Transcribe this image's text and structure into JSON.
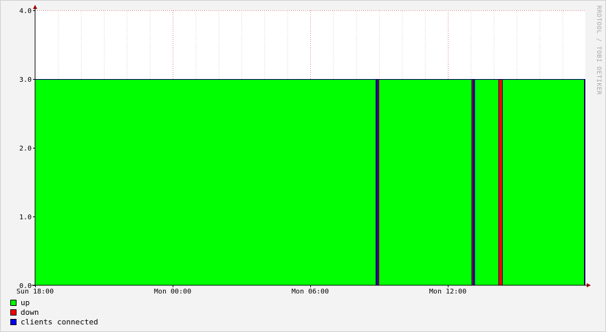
{
  "chart_data": {
    "type": "area",
    "watermark": "RRDTOOL / TOBI OETIKER",
    "ylim": [
      0,
      4
    ],
    "yticks": [
      {
        "value": 0,
        "label": "0.0"
      },
      {
        "value": 1,
        "label": "1.0"
      },
      {
        "value": 2,
        "label": "2.0"
      },
      {
        "value": 3,
        "label": "3.0"
      },
      {
        "value": 4,
        "label": "4.0"
      }
    ],
    "xlim_hours": [
      0,
      24
    ],
    "xticks": [
      {
        "hours": 0,
        "label": "Sun 18:00"
      },
      {
        "hours": 6,
        "label": "Mon 00:00"
      },
      {
        "hours": 12,
        "label": "Mon 06:00"
      },
      {
        "hours": 18,
        "label": "Mon 12:00"
      }
    ],
    "grid": true,
    "legend_position": "bottom-left",
    "series": [
      {
        "name": "up",
        "color": "#00ff00"
      },
      {
        "name": "down",
        "color": "#ff0000"
      },
      {
        "name": "clients connected",
        "color": "#0000ff"
      }
    ],
    "segments": [
      {
        "start": 0.0,
        "end": 14.87,
        "series": "up",
        "value": 3
      },
      {
        "start": 14.87,
        "end": 14.93,
        "series": "clients connected",
        "value": 3
      },
      {
        "start": 14.93,
        "end": 14.99,
        "series": "down",
        "value": 3
      },
      {
        "start": 14.99,
        "end": 19.05,
        "series": "up",
        "value": 3
      },
      {
        "start": 19.05,
        "end": 19.11,
        "series": "down",
        "value": 3
      },
      {
        "start": 19.11,
        "end": 19.17,
        "series": "clients connected",
        "value": 3
      },
      {
        "start": 19.17,
        "end": 20.22,
        "series": "up",
        "value": 3
      },
      {
        "start": 20.22,
        "end": 20.38,
        "series": "down",
        "value": 3
      },
      {
        "start": 20.38,
        "end": 24.0,
        "series": "up",
        "value": 3
      }
    ]
  }
}
